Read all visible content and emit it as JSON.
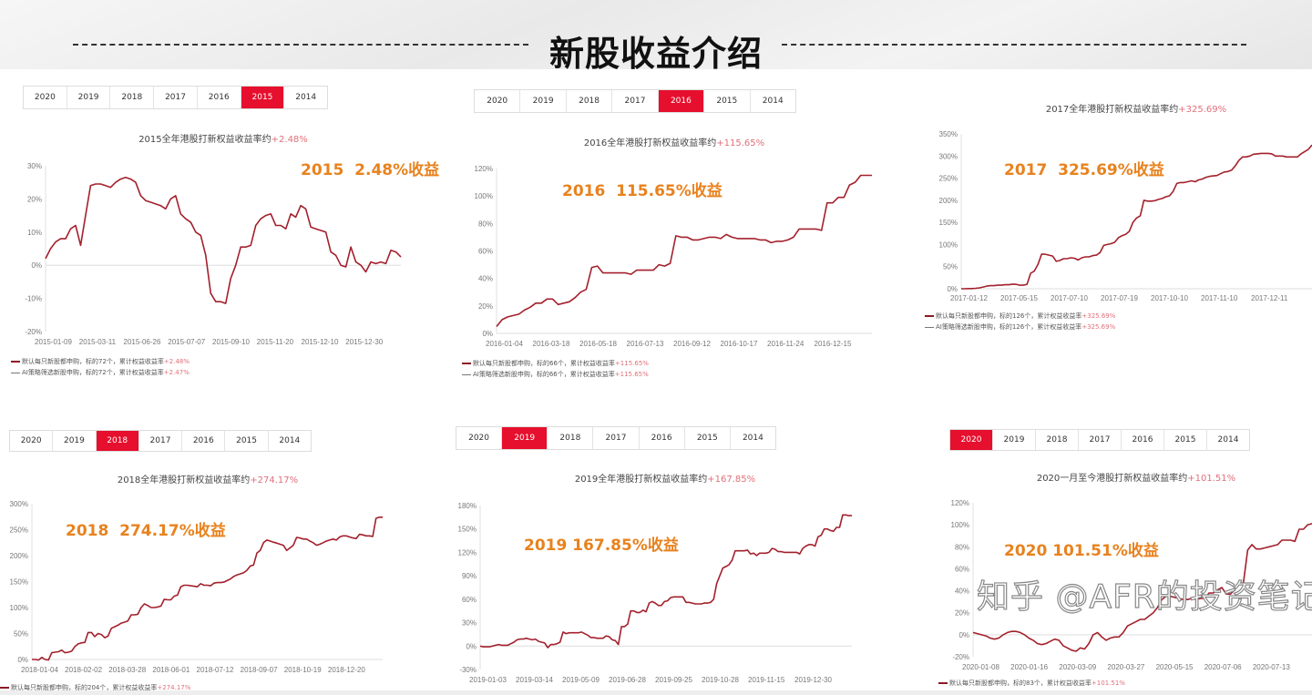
{
  "header": {
    "title": "新股收益介绍"
  },
  "colors": {
    "line": "#a3202c",
    "active_tab": "#e60f2d",
    "annotation": "#e8821e",
    "highlight_pct": "#e0707a"
  },
  "watermark": "知乎 @AFR的投资笔记",
  "panels": [
    {
      "tabs": [
        "2020",
        "2019",
        "2018",
        "2017",
        "2016",
        "2015",
        "2014"
      ],
      "active_tab": "2015",
      "title": "2015全年港股打新权益收益率约",
      "title_pct": "+2.48%",
      "annotation": "2015  2.48%收益",
      "legend": [
        {
          "text": "默认每只新股都申购，标的72个，累计权益收益率",
          "pct": "+2.48%"
        },
        {
          "text": "AI策略筛选新股申购，标的72个，累计权益收益率",
          "pct": "+2.47%"
        }
      ]
    },
    {
      "tabs": [
        "2020",
        "2019",
        "2018",
        "2017",
        "2016",
        "2015",
        "2014"
      ],
      "active_tab": "2016",
      "title": "2016全年港股打新权益收益率约",
      "title_pct": "+115.65%",
      "annotation": "2016  115.65%收益",
      "legend": [
        {
          "text": "默认每只新股都申购，标的66个，累计权益收益率",
          "pct": "+115.65%"
        },
        {
          "text": "AI策略筛选新股申购，标的66个，累计权益收益率",
          "pct": "+115.65%"
        }
      ]
    },
    {
      "tabs": [],
      "active_tab": "",
      "title": "2017全年港股打新权益收益率约",
      "title_pct": "+325.69%",
      "annotation": "2017  325.69%收益",
      "legend": [
        {
          "text": "默认每只新股都申购，标的126个，累计权益收益率",
          "pct": "+325.69%"
        },
        {
          "text": "AI策略筛选新股申购，标的126个，累计权益收益率",
          "pct": "+325.69%"
        }
      ]
    },
    {
      "tabs": [
        "2020",
        "2019",
        "2018",
        "2017",
        "2016",
        "2015",
        "2014"
      ],
      "active_tab": "2018",
      "title": "2018全年港股打新权益收益率约",
      "title_pct": "+274.17%",
      "annotation": "2018  274.17%收益",
      "legend": [
        {
          "text": "默认每只新股都申购，标的204个，累计权益收益率",
          "pct": "+274.17%"
        }
      ]
    },
    {
      "tabs": [
        "2020",
        "2019",
        "2018",
        "2017",
        "2016",
        "2015",
        "2014"
      ],
      "active_tab": "2019",
      "title": "2019全年港股打新权益收益率约",
      "title_pct": "+167.85%",
      "annotation": "2019 167.85%收益",
      "legend": []
    },
    {
      "tabs": [
        "2020",
        "2019",
        "2018",
        "2017",
        "2016",
        "2015",
        "2014"
      ],
      "active_tab": "2020",
      "title": "2020一月至今港股打新权益收益率约",
      "title_pct": "+101.51%",
      "annotation": "2020 101.51%收益",
      "legend": [
        {
          "text": "默认每只新股都申购，标的83个，累计权益收益率",
          "pct": "+101.51%"
        }
      ]
    }
  ],
  "chart_data": [
    {
      "type": "line",
      "title": "2015全年港股打新权益收益率约+2.48%",
      "ylim": [
        -20,
        30
      ],
      "yticks": [
        "-20%",
        "-10%",
        "0%",
        "10%",
        "20%",
        "30%"
      ],
      "ytick_values": [
        -20,
        -10,
        0,
        10,
        20,
        30
      ],
      "xticks": [
        "2015-01-09",
        "2015-03-11",
        "2015-06-26",
        "2015-07-07",
        "2015-09-10",
        "2015-11-20",
        "2015-12-10",
        "2015-12-30"
      ],
      "series": [
        {
          "name": "默认每只新股都申购",
          "values": [
            2,
            5,
            7,
            8,
            8,
            11,
            12,
            6,
            15,
            24,
            24.5,
            24.5,
            24,
            23.5,
            25,
            26,
            26.5,
            26,
            25,
            21,
            19.5,
            19,
            18.5,
            18,
            17,
            20,
            21,
            15.5,
            14,
            13,
            10,
            9,
            3,
            -8.5,
            -11,
            -11,
            -11.5,
            -4,
            0,
            5.5,
            5.5,
            6,
            12,
            14,
            15,
            15.5,
            12,
            12,
            11,
            15.5,
            14.5,
            18,
            17,
            11.5,
            11,
            10.5,
            10,
            4,
            3,
            0,
            -0.5,
            5.5,
            1,
            0,
            -2,
            1,
            0.5,
            1,
            0.5,
            4.5,
            4,
            2.5
          ]
        }
      ]
    },
    {
      "type": "line",
      "title": "2016全年港股打新权益收益率约+115.65%",
      "ylim": [
        0,
        120
      ],
      "yticks": [
        "0%",
        "20%",
        "40%",
        "60%",
        "80%",
        "100%",
        "120%"
      ],
      "ytick_values": [
        0,
        20,
        40,
        60,
        80,
        100,
        120
      ],
      "xticks": [
        "2016-01-04",
        "2016-03-18",
        "2016-05-18",
        "2016-07-13",
        "2016-09-12",
        "2016-10-17",
        "2016-11-24",
        "2016-12-15"
      ],
      "series": [
        {
          "name": "默认每只新股都申购",
          "values": [
            5,
            10,
            12,
            13,
            14,
            17,
            19,
            22,
            22,
            25,
            25,
            21,
            22,
            23,
            26,
            30,
            32,
            48,
            49,
            44,
            44,
            44,
            44,
            44,
            43,
            46,
            46,
            46,
            46,
            50,
            49,
            51,
            71,
            70,
            70,
            68,
            68,
            69,
            70,
            70,
            69,
            72,
            70,
            69,
            69,
            69,
            69,
            68,
            68,
            66,
            67,
            67,
            68,
            70,
            76,
            76,
            76,
            76,
            75,
            95,
            95,
            99,
            99,
            108,
            110,
            115,
            115,
            115
          ]
        }
      ]
    },
    {
      "type": "line",
      "title": "2017全年港股打新权益收益率约+325.69%",
      "ylim": [
        0,
        350
      ],
      "yticks": [
        "0%",
        "50%",
        "100%",
        "150%",
        "200%",
        "250%",
        "300%",
        "350%"
      ],
      "ytick_values": [
        0,
        50,
        100,
        150,
        200,
        250,
        300,
        350
      ],
      "xticks": [
        "2017-01-12",
        "2017-05-15",
        "2017-07-10",
        "2017-07-19",
        "2017-10-10",
        "2017-11-10",
        "2017-12-11"
      ],
      "series": [
        {
          "name": "默认每只新股都申购",
          "values": [
            0,
            0,
            0.5,
            0.5,
            1,
            2,
            4,
            6,
            7,
            7,
            8,
            8,
            9,
            9,
            10,
            10,
            8,
            8,
            10,
            35,
            40,
            55,
            78,
            78,
            76,
            74,
            62,
            64,
            68,
            68,
            70,
            69,
            65,
            70,
            72,
            72,
            75,
            76,
            82,
            98,
            100,
            102,
            105,
            115,
            120,
            123,
            130,
            150,
            160,
            165,
            200,
            198,
            198,
            199,
            202,
            204,
            208,
            210,
            220,
            238,
            240,
            240,
            242,
            244,
            242,
            246,
            248,
            252,
            254,
            255,
            256,
            260,
            264,
            265,
            268,
            278,
            290,
            298,
            298,
            300,
            304,
            305,
            306,
            306,
            306,
            305,
            300,
            300,
            300,
            298,
            298,
            298,
            298,
            305,
            310,
            315,
            325
          ]
        }
      ]
    },
    {
      "type": "line",
      "title": "2018全年港股打新权益收益率约+274.17%",
      "ylim": [
        0,
        300
      ],
      "yticks": [
        "0%",
        "50%",
        "100%",
        "150%",
        "200%",
        "250%",
        "300%"
      ],
      "ytick_values": [
        0,
        50,
        100,
        150,
        200,
        250,
        300
      ],
      "xticks": [
        "2018-01-04",
        "2018-02-02",
        "2018-03-28",
        "2018-06-01",
        "2018-07-12",
        "2018-09-07",
        "2018-10-19",
        "2018-12-20"
      ],
      "series": [
        {
          "name": "默认每只新股都申购",
          "values": [
            0,
            0,
            -1,
            4,
            0,
            -1,
            13,
            14,
            15,
            18,
            13,
            14,
            16,
            25,
            30,
            32,
            33,
            52,
            52,
            44,
            50,
            48,
            42,
            45,
            60,
            63,
            66,
            70,
            72,
            74,
            86,
            86,
            87,
            100,
            107,
            104,
            100,
            100,
            101,
            103,
            116,
            115,
            115,
            122,
            124,
            140,
            143,
            143,
            142,
            141,
            140,
            146,
            143,
            143,
            142,
            147,
            148,
            148,
            149,
            152,
            155,
            160,
            163,
            165,
            167,
            172,
            180,
            182,
            205,
            210,
            225,
            230,
            228,
            226,
            224,
            222,
            220,
            210,
            215,
            220,
            235,
            234,
            232,
            232,
            228,
            225,
            220,
            222,
            225,
            228,
            230,
            232,
            230,
            236,
            238,
            238,
            236,
            234,
            233,
            241,
            240,
            238,
            238,
            237,
            272,
            274,
            274
          ]
        }
      ]
    },
    {
      "type": "line",
      "title": "2019全年港股打新权益收益率约+167.85%",
      "ylim": [
        -30,
        180
      ],
      "yticks": [
        "-30%",
        "0%",
        "30%",
        "60%",
        "90%",
        "120%",
        "150%",
        "180%"
      ],
      "ytick_values": [
        -30,
        0,
        30,
        60,
        90,
        120,
        150,
        180
      ],
      "xticks": [
        "2019-01-03",
        "2019-03-14",
        "2019-05-09",
        "2019-06-28",
        "2019-09-25",
        "2019-10-28",
        "2019-11-15",
        "2019-12-30"
      ],
      "series": [
        {
          "name": "",
          "values": [
            0,
            -1,
            -1,
            -1,
            0,
            1,
            2,
            1,
            1,
            1,
            3,
            5,
            8,
            9,
            9,
            10,
            9,
            8,
            9,
            6,
            5,
            4,
            -2,
            2,
            2,
            3,
            5,
            18,
            16,
            17,
            17,
            17,
            17,
            18,
            16,
            14,
            11,
            11,
            10,
            10,
            10,
            13,
            12,
            8,
            7,
            2,
            25,
            25,
            28,
            45,
            45,
            43,
            43,
            46,
            44,
            55,
            57,
            55,
            52,
            52,
            57,
            58,
            62,
            63,
            63,
            63,
            63,
            56,
            56,
            55,
            54,
            54,
            54,
            55,
            55,
            56,
            60,
            80,
            90,
            100,
            102,
            104,
            110,
            122,
            122,
            122,
            122,
            123,
            118,
            119,
            116,
            119,
            119,
            119,
            120,
            125,
            124,
            121,
            121,
            120,
            120,
            120,
            120,
            120,
            118,
            125,
            128,
            130,
            130,
            128,
            140,
            142,
            150,
            150,
            148,
            147,
            152,
            152,
            168,
            168,
            167,
            167
          ]
        }
      ]
    },
    {
      "type": "line",
      "title": "2020一月至今港股打新权益收益率约+101.51%",
      "ylim": [
        -20,
        120
      ],
      "yticks": [
        "-20%",
        "0%",
        "20%",
        "40%",
        "60%",
        "80%",
        "100%",
        "120%"
      ],
      "ytick_values": [
        -20,
        0,
        20,
        40,
        60,
        80,
        100,
        120
      ],
      "xticks": [
        "2020-01-08",
        "2020-01-16",
        "2020-03-09",
        "2020-03-27",
        "2020-05-15",
        "2020-07-06",
        "2020-07-13"
      ],
      "series": [
        {
          "name": "默认每只新股都申购",
          "values": [
            2,
            1,
            0,
            -1,
            -3,
            -4,
            -3,
            0,
            2,
            3,
            3,
            2,
            0,
            -3,
            -5,
            -8,
            -9,
            -8,
            -6,
            -4,
            -5,
            -10,
            -12,
            -14,
            -15,
            -12,
            -13,
            -8,
            0,
            2,
            -2,
            -5,
            -3,
            -2,
            -2,
            2,
            8,
            10,
            12,
            14,
            14,
            17,
            20,
            25,
            32,
            35,
            35,
            34,
            33,
            32,
            32,
            33,
            32,
            33,
            33,
            38,
            38,
            41,
            43,
            37,
            37,
            41,
            47,
            47,
            77,
            82,
            78,
            78,
            79,
            80,
            81,
            82,
            86,
            86,
            86,
            85,
            96,
            96,
            100,
            101
          ]
        }
      ]
    }
  ]
}
